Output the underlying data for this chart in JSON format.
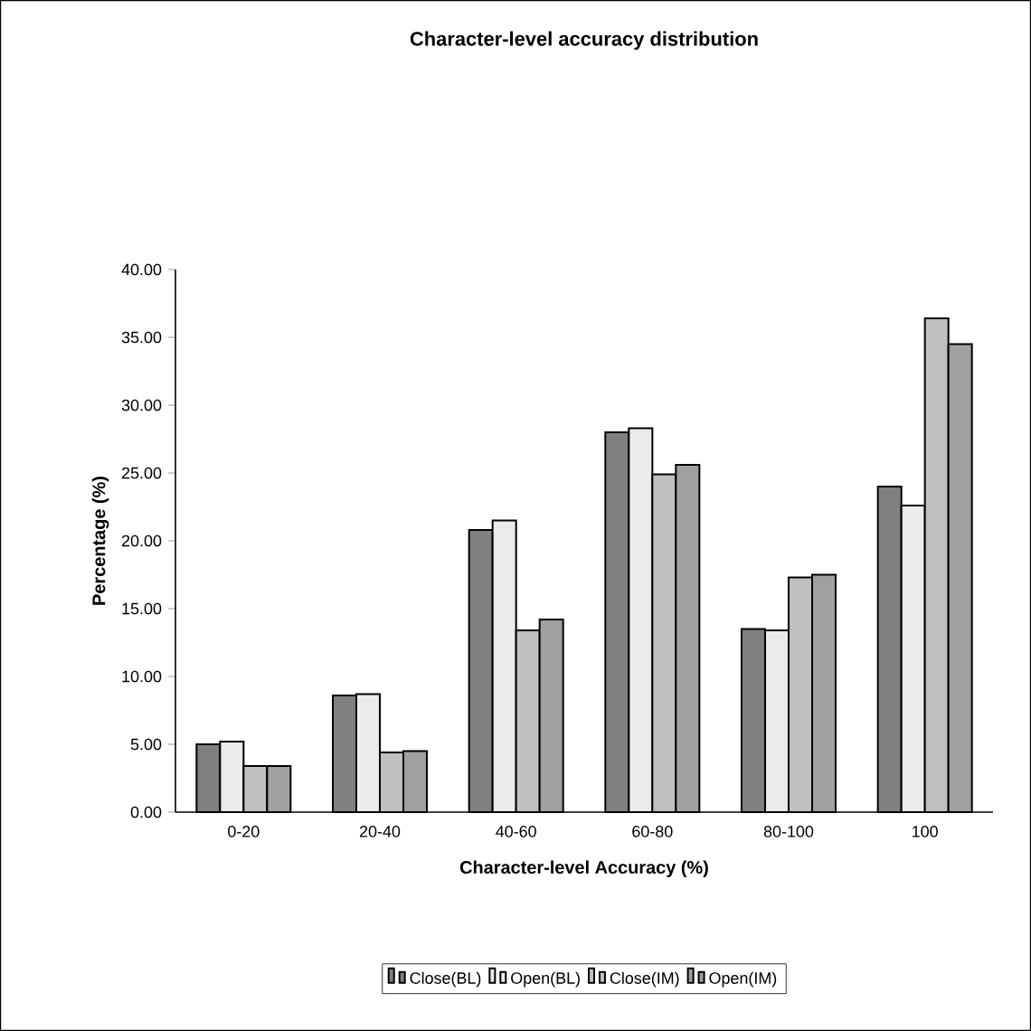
{
  "chart_data": {
    "type": "bar",
    "title": "Character-level accuracy distribution",
    "xlabel": "Character-level Accuracy (%)",
    "ylabel": "Percentage (%)",
    "categories": [
      "0-20",
      "20-40",
      "40-60",
      "60-80",
      "80-100",
      "100"
    ],
    "series": [
      {
        "name": "Close(BL)",
        "color": "#808080",
        "values": [
          5.0,
          8.6,
          20.8,
          28.0,
          13.5,
          24.0
        ]
      },
      {
        "name": "Open(BL)",
        "color": "#ebebeb",
        "values": [
          5.2,
          8.7,
          21.5,
          28.3,
          13.4,
          22.6
        ]
      },
      {
        "name": "Close(IM)",
        "color": "#c0c0c0",
        "values": [
          3.4,
          4.4,
          13.4,
          24.9,
          17.3,
          36.4
        ]
      },
      {
        "name": "Open(IM)",
        "color": "#a0a0a0",
        "values": [
          3.4,
          4.5,
          14.2,
          25.6,
          17.5,
          34.5
        ]
      }
    ],
    "ylim": [
      0,
      40
    ],
    "yticks": [
      {
        "value": 0,
        "label": "0.00"
      },
      {
        "value": 5,
        "label": "5.00"
      },
      {
        "value": 10,
        "label": "10.00"
      },
      {
        "value": 15,
        "label": "15.00"
      },
      {
        "value": 20,
        "label": "20.00"
      },
      {
        "value": 25,
        "label": "25.00"
      },
      {
        "value": 30,
        "label": "30.00"
      },
      {
        "value": 35,
        "label": "35.00"
      },
      {
        "value": 40,
        "label": "40.00"
      }
    ],
    "grid": false,
    "legend": "bottom"
  }
}
